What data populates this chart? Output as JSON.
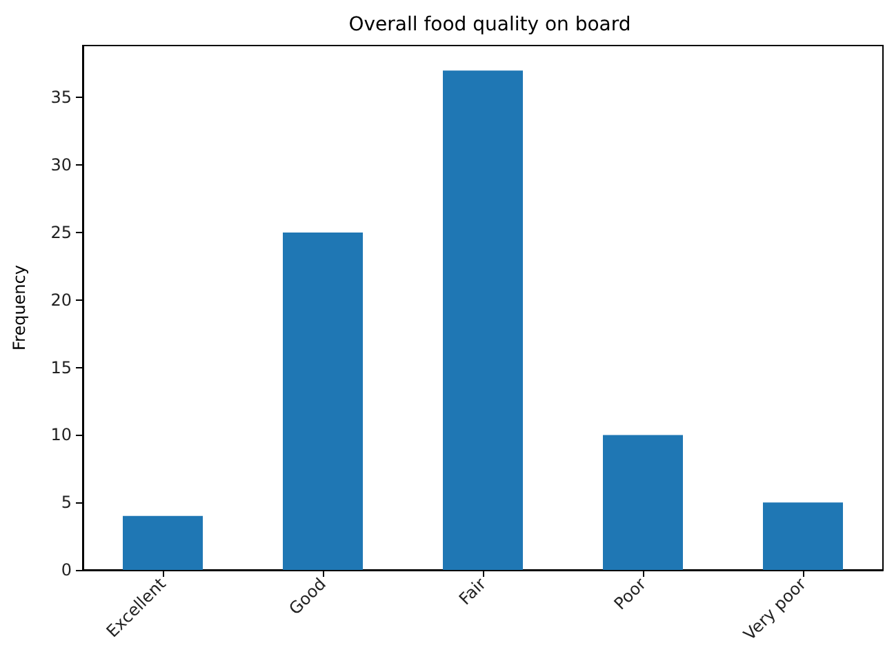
{
  "chart_data": {
    "type": "bar",
    "title": "Overall food quality on board",
    "ylabel": "Frequency",
    "categories": [
      "Excellent",
      "Good",
      "Fair",
      "Poor",
      "Very poor"
    ],
    "values": [
      4,
      25,
      37,
      10,
      5
    ],
    "color": "#1f77b4",
    "ylim": [
      0,
      38.85
    ],
    "yticks": [
      0,
      5,
      10,
      15,
      20,
      25,
      30,
      35
    ]
  }
}
